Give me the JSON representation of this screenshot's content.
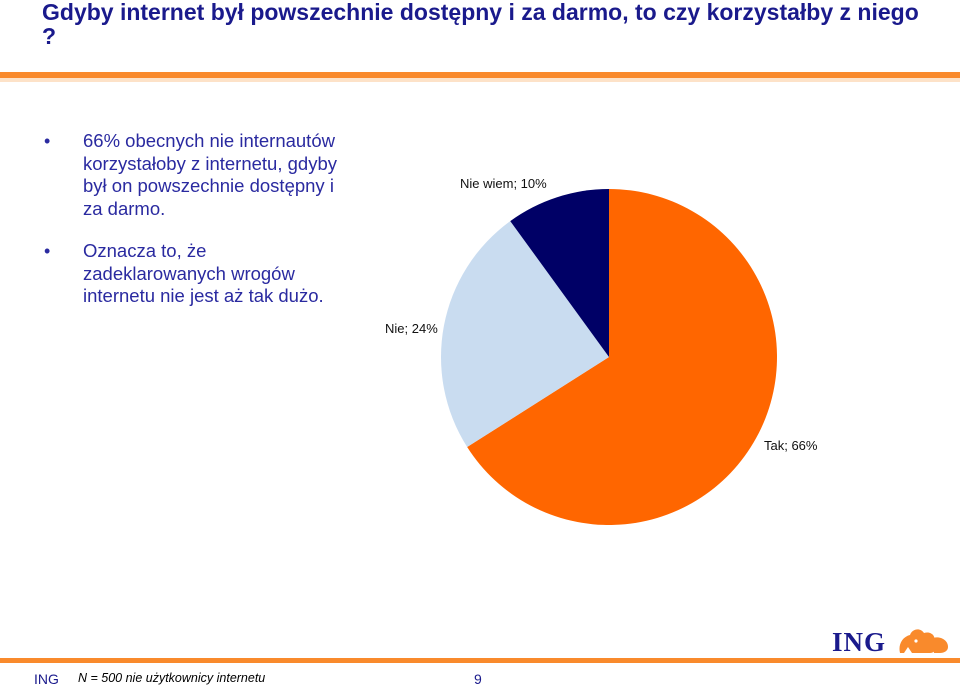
{
  "slide": {
    "title": "Gdyby internet był powszechnie dostępny i za darmo, to czy korzystałby z niego ?",
    "bullets": [
      "66% obecnych nie internautów korzystałoby z internetu, gdyby był on powszechnie dostępny i za darmo.",
      "Oznacza to, że zadeklarowanych wrogów internetu nie jest aż tak dużo."
    ],
    "bullet_glyph": "•",
    "footer": {
      "brand": "ING",
      "note": "N = 500 nie użytkownicy internetu",
      "page": "9"
    },
    "logo_text": "ING",
    "colors": {
      "title": "#1a1a8c",
      "accent": "#f98a2c"
    }
  },
  "chart_data": {
    "type": "pie",
    "title": "",
    "slices": [
      {
        "label": "Tak; 66%",
        "category": "Tak",
        "value": 66,
        "color": "#ff6600"
      },
      {
        "label": "Nie; 24%",
        "category": "Nie",
        "value": 24,
        "color": "#c9dcf0"
      },
      {
        "label": "Nie wiem; 10%",
        "category": "Nie wiem",
        "value": 10,
        "color": "#000066"
      }
    ],
    "start": "12 o'clock",
    "direction": "clockwise",
    "legend": "none"
  }
}
